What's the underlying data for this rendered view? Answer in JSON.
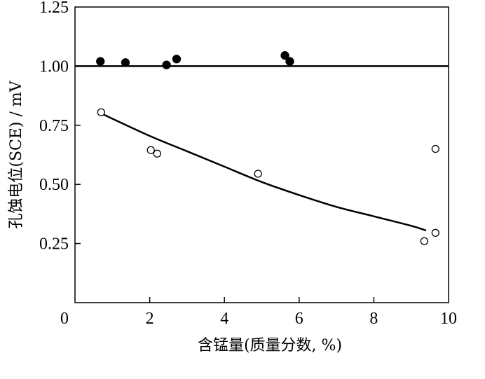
{
  "chart_data": {
    "type": "scatter",
    "title": "",
    "xlabel": "含锰量(质量分数, %)",
    "ylabel": "孔蚀电位(SCE) / mV",
    "xlim": [
      0,
      10
    ],
    "ylim": [
      0,
      1.25
    ],
    "x_origin_label": "0",
    "x_ticks": [
      {
        "value": 2,
        "label": "2"
      },
      {
        "value": 4,
        "label": "4"
      },
      {
        "value": 6,
        "label": "6"
      },
      {
        "value": 8,
        "label": "8"
      },
      {
        "value": 10,
        "label": "10"
      }
    ],
    "y_ticks": [
      {
        "value": 0.25,
        "label": "0.25"
      },
      {
        "value": 0.5,
        "label": "0.50"
      },
      {
        "value": 0.75,
        "label": "0.75"
      },
      {
        "value": 1.0,
        "label": "1.00"
      },
      {
        "value": 1.25,
        "label": "1.25"
      }
    ],
    "grid": false,
    "legend": "none",
    "series": [
      {
        "marker": "filled-circle",
        "points": [
          {
            "x": 0.68,
            "y": 1.02
          },
          {
            "x": 1.35,
            "y": 1.015
          },
          {
            "x": 2.45,
            "y": 1.005
          },
          {
            "x": 2.72,
            "y": 1.03
          },
          {
            "x": 5.62,
            "y": 1.045
          },
          {
            "x": 5.75,
            "y": 1.02
          }
        ]
      },
      {
        "marker": "open-circle",
        "points": [
          {
            "x": 0.7,
            "y": 0.805
          },
          {
            "x": 2.03,
            "y": 0.645
          },
          {
            "x": 2.2,
            "y": 0.63
          },
          {
            "x": 4.9,
            "y": 0.545
          },
          {
            "x": 9.35,
            "y": 0.26
          },
          {
            "x": 9.65,
            "y": 0.295
          },
          {
            "x": 9.65,
            "y": 0.65
          }
        ]
      }
    ],
    "reference_line": {
      "y": 1.0
    },
    "fit_curve": {
      "points": [
        {
          "x": 0.7,
          "y": 0.8
        },
        {
          "x": 2.0,
          "y": 0.705
        },
        {
          "x": 3.0,
          "y": 0.64
        },
        {
          "x": 4.0,
          "y": 0.575
        },
        {
          "x": 5.0,
          "y": 0.51
        },
        {
          "x": 6.0,
          "y": 0.455
        },
        {
          "x": 7.0,
          "y": 0.405
        },
        {
          "x": 8.0,
          "y": 0.365
        },
        {
          "x": 9.0,
          "y": 0.325
        },
        {
          "x": 9.4,
          "y": 0.305
        }
      ]
    }
  }
}
